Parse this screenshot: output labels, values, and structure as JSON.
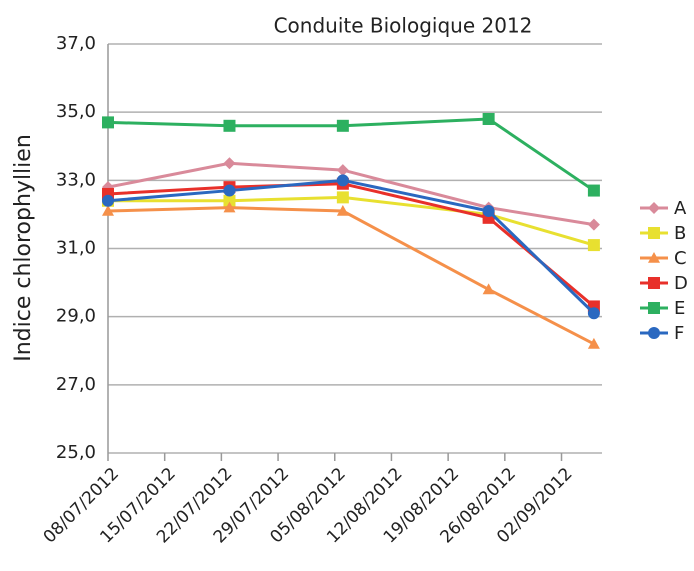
{
  "chart_data": {
    "type": "line",
    "title": "Conduite Biologique 2012",
    "y_label": "Indice chlorophyllien",
    "x": [
      "08/07/2012",
      "23/07/2012",
      "06/08/2012",
      "24/08/2012",
      "06/09/2012"
    ],
    "xlim": [
      "08/07/2012",
      "07/09/2012"
    ],
    "xticks": [
      "08/07/2012",
      "15/07/2012",
      "22/07/2012",
      "29/07/2012",
      "05/08/2012",
      "12/08/2012",
      "19/08/2012",
      "26/08/2012",
      "02/09/2012"
    ],
    "ylim": [
      25,
      37
    ],
    "yticks": [
      {
        "value": 25,
        "label": "25,0"
      },
      {
        "value": 27,
        "label": "27,0"
      },
      {
        "value": 29,
        "label": "29,0"
      },
      {
        "value": 31,
        "label": "31,0"
      },
      {
        "value": 33,
        "label": "33,0"
      },
      {
        "value": 35,
        "label": "35,0"
      },
      {
        "value": 37,
        "label": "37,0"
      }
    ],
    "grid": true,
    "legend": "right",
    "series": [
      {
        "name": "A",
        "color": "#d98a9a",
        "marker": "diamond",
        "values": [
          32.8,
          33.5,
          33.3,
          32.2,
          31.7
        ]
      },
      {
        "name": "B",
        "color": "#e8e030",
        "marker": "square",
        "values": [
          32.4,
          32.4,
          32.5,
          32.0,
          31.1
        ]
      },
      {
        "name": "C",
        "color": "#f5904a",
        "marker": "triangle",
        "values": [
          32.1,
          32.2,
          32.1,
          29.8,
          28.2
        ]
      },
      {
        "name": "D",
        "color": "#e8302a",
        "marker": "square",
        "values": [
          32.6,
          32.8,
          32.9,
          31.9,
          29.3
        ]
      },
      {
        "name": "E",
        "color": "#2db060",
        "marker": "square",
        "values": [
          34.7,
          34.6,
          34.6,
          34.8,
          32.7
        ]
      },
      {
        "name": "F",
        "color": "#2a68c0",
        "marker": "circle",
        "values": [
          32.4,
          32.7,
          33.0,
          32.1,
          29.1
        ]
      }
    ]
  }
}
